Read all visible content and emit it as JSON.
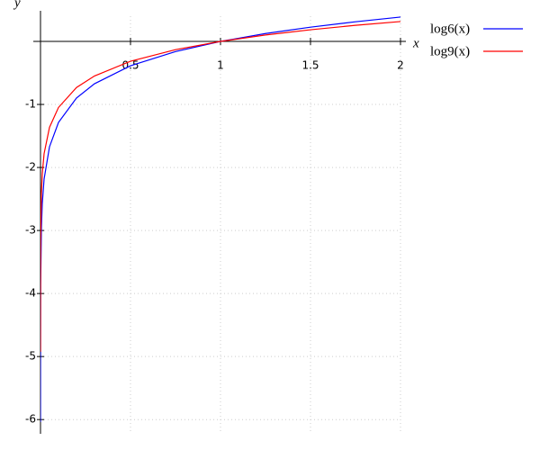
{
  "chart_data": {
    "type": "line",
    "x_label": "x",
    "y_label": "y",
    "x": [
      2e-05,
      0.0001,
      0.001,
      0.005,
      0.01,
      0.02,
      0.05,
      0.1,
      0.2,
      0.3,
      0.5,
      0.75,
      1,
      1.25,
      1.5,
      1.75,
      2
    ],
    "series": [
      {
        "name": "log6(x)",
        "color": "#0000ff",
        "values": [
          -6.039,
          -5.14,
          -3.855,
          -2.957,
          -2.57,
          -2.183,
          -1.672,
          -1.285,
          -0.898,
          -0.672,
          -0.387,
          -0.161,
          0,
          0.125,
          0.226,
          0.312,
          0.387
        ]
      },
      {
        "name": "log9(x)",
        "color": "#ff0000",
        "values": [
          -4.925,
          -4.192,
          -3.144,
          -2.411,
          -2.096,
          -1.78,
          -1.363,
          -1.048,
          -0.732,
          -0.548,
          -0.315,
          -0.131,
          0,
          0.102,
          0.185,
          0.255,
          0.315
        ]
      }
    ],
    "xlim": [
      0,
      2
    ],
    "ylim": [
      -6.14,
      0.4
    ],
    "xticks": [
      0.5,
      1,
      1.5,
      2
    ],
    "yticks": [
      -1,
      -2,
      -3,
      -4,
      -5,
      -6
    ],
    "grid": true,
    "legend": "top-right"
  }
}
